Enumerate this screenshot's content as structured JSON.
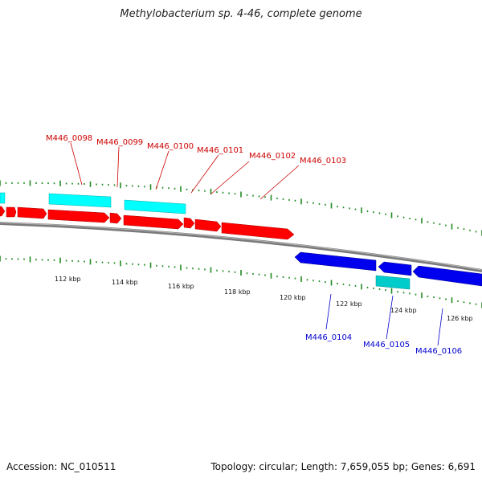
{
  "title": "Methylobacterium sp. 4-46, complete genome",
  "footer": {
    "accession": "Accession: NC_010511",
    "summary": "Topology: circular; Length: 7,659,055 bp; Genes: 6,691"
  },
  "scale_labels": [
    "112 kbp",
    "114 kbp",
    "116 kbp",
    "118 kbp",
    "120 kbp",
    "122 kbp",
    "124 kbp",
    "126 kbp"
  ],
  "genes_top": [
    "M446_0098",
    "M446_0099",
    "M446_0100",
    "M446_0101",
    "M446_0102",
    "M446_0103"
  ],
  "genes_bottom": [
    "M446_0104",
    "M446_0105",
    "M446_0106"
  ],
  "colors": {
    "forward_cds": "#ff0000",
    "reverse_cds": "#0000ee",
    "forward_feature": "#00ffff",
    "reverse_feature": "#00cccc",
    "backbone": "#888888",
    "ticks": "#228b22",
    "top_label": "#cc0000",
    "bottom_label": "#0000cc"
  }
}
